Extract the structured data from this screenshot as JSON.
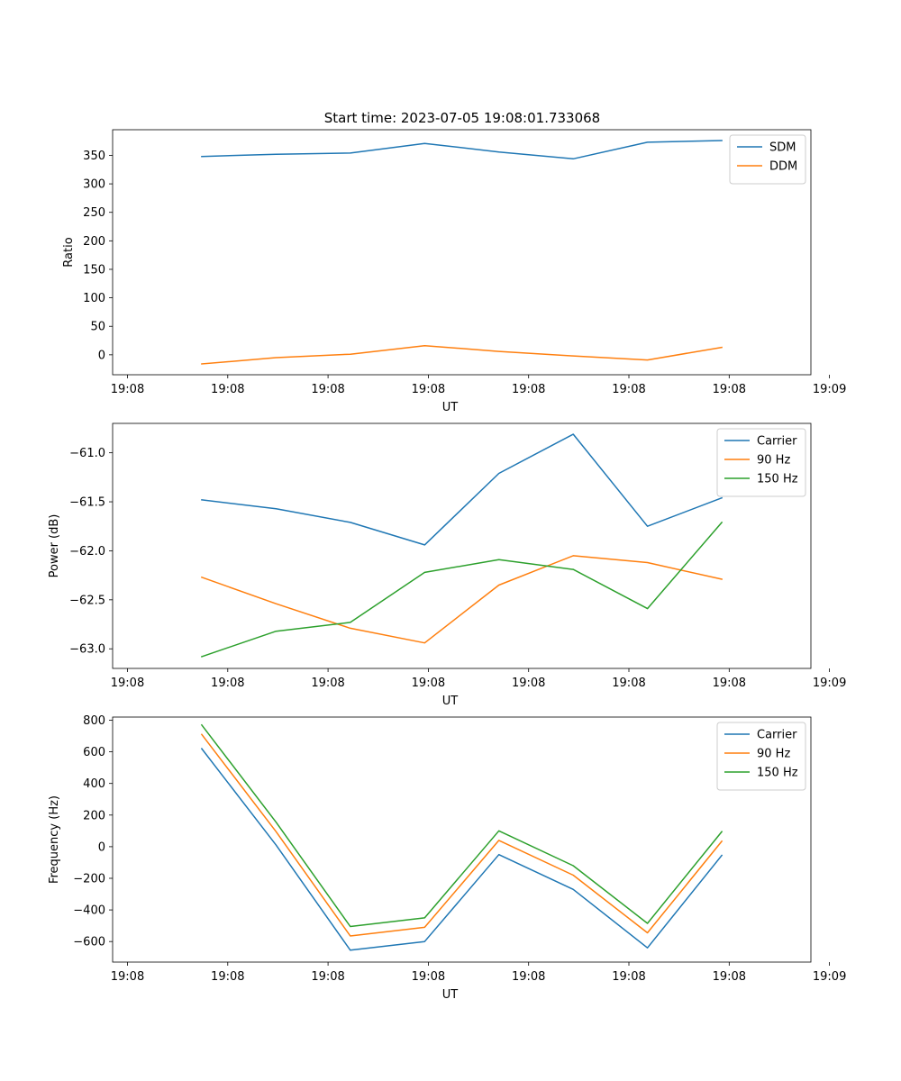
{
  "figure": {
    "title": "Start time: 2023-07-05 19:08:01.733068"
  },
  "chart_data": [
    {
      "type": "line",
      "title": "Start time: 2023-07-05 19:08:01.733068",
      "xlabel": "UT",
      "ylabel": "Ratio",
      "x_tick_labels": [
        "19:08",
        "19:08",
        "19:08",
        "19:08",
        "19:08",
        "19:08",
        "19:08",
        "19:09"
      ],
      "x": [
        0.5,
        1.0,
        1.5,
        2.0,
        2.5,
        3.0,
        3.5,
        4.0
      ],
      "xlim": [
        -0.1,
        4.6
      ],
      "ylim": [
        -35,
        395
      ],
      "yticks": [
        0,
        50,
        100,
        150,
        200,
        250,
        300,
        350
      ],
      "legend": "upper right",
      "series": [
        {
          "name": "SDM",
          "color": "#1f77b4",
          "values": [
            348,
            352,
            354,
            371,
            356,
            344,
            373,
            376
          ]
        },
        {
          "name": "DDM",
          "color": "#ff7f0e",
          "values": [
            -16,
            -5,
            1,
            16,
            6,
            -2,
            -9,
            13
          ]
        }
      ]
    },
    {
      "type": "line",
      "title": "",
      "xlabel": "UT",
      "ylabel": "Power (dB)",
      "x_tick_labels": [
        "19:08",
        "19:08",
        "19:08",
        "19:08",
        "19:08",
        "19:08",
        "19:08",
        "19:09"
      ],
      "x": [
        0.5,
        1.0,
        1.5,
        2.0,
        2.5,
        3.0,
        3.5,
        4.0
      ],
      "xlim": [
        -0.1,
        4.6
      ],
      "ylim": [
        -63.2,
        -60.7
      ],
      "yticks": [
        -63.0,
        -62.5,
        -62.0,
        -61.5,
        -61.0
      ],
      "ytick_labels": [
        "−63.0",
        "−62.5",
        "−62.0",
        "−61.5",
        "−61.0"
      ],
      "legend": "upper right",
      "series": [
        {
          "name": "Carrier",
          "color": "#1f77b4",
          "values": [
            -61.48,
            -61.57,
            -61.71,
            -61.94,
            -61.21,
            -60.81,
            -61.75,
            -61.46
          ]
        },
        {
          "name": "90 Hz",
          "color": "#ff7f0e",
          "values": [
            -62.27,
            -62.54,
            -62.79,
            -62.94,
            -62.35,
            -62.05,
            -62.12,
            -62.29
          ]
        },
        {
          "name": "150 Hz",
          "color": "#2ca02c",
          "values": [
            -63.08,
            -62.82,
            -62.73,
            -62.22,
            -62.09,
            -62.19,
            -62.59,
            -61.71
          ]
        }
      ]
    },
    {
      "type": "line",
      "title": "",
      "xlabel": "UT",
      "ylabel": "Frequency (Hz)",
      "x_tick_labels": [
        "19:08",
        "19:08",
        "19:08",
        "19:08",
        "19:08",
        "19:08",
        "19:08",
        "19:09"
      ],
      "x": [
        0.5,
        1.0,
        1.5,
        2.0,
        2.5,
        3.0,
        3.5,
        4.0
      ],
      "xlim": [
        -0.1,
        4.6
      ],
      "ylim": [
        -730,
        820
      ],
      "yticks": [
        -600,
        -400,
        -200,
        0,
        200,
        400,
        600,
        800
      ],
      "ytick_labels": [
        "−600",
        "−400",
        "−200",
        "0",
        "200",
        "400",
        "600",
        "800"
      ],
      "legend": "upper right",
      "series": [
        {
          "name": "Carrier",
          "color": "#1f77b4",
          "values": [
            620,
            10,
            -655,
            -600,
            -50,
            -270,
            -640,
            -55
          ]
        },
        {
          "name": "90 Hz",
          "color": "#ff7f0e",
          "values": [
            710,
            95,
            -565,
            -510,
            40,
            -180,
            -545,
            35
          ]
        },
        {
          "name": "150 Hz",
          "color": "#2ca02c",
          "values": [
            770,
            155,
            -505,
            -450,
            100,
            -120,
            -485,
            95
          ]
        }
      ]
    }
  ]
}
